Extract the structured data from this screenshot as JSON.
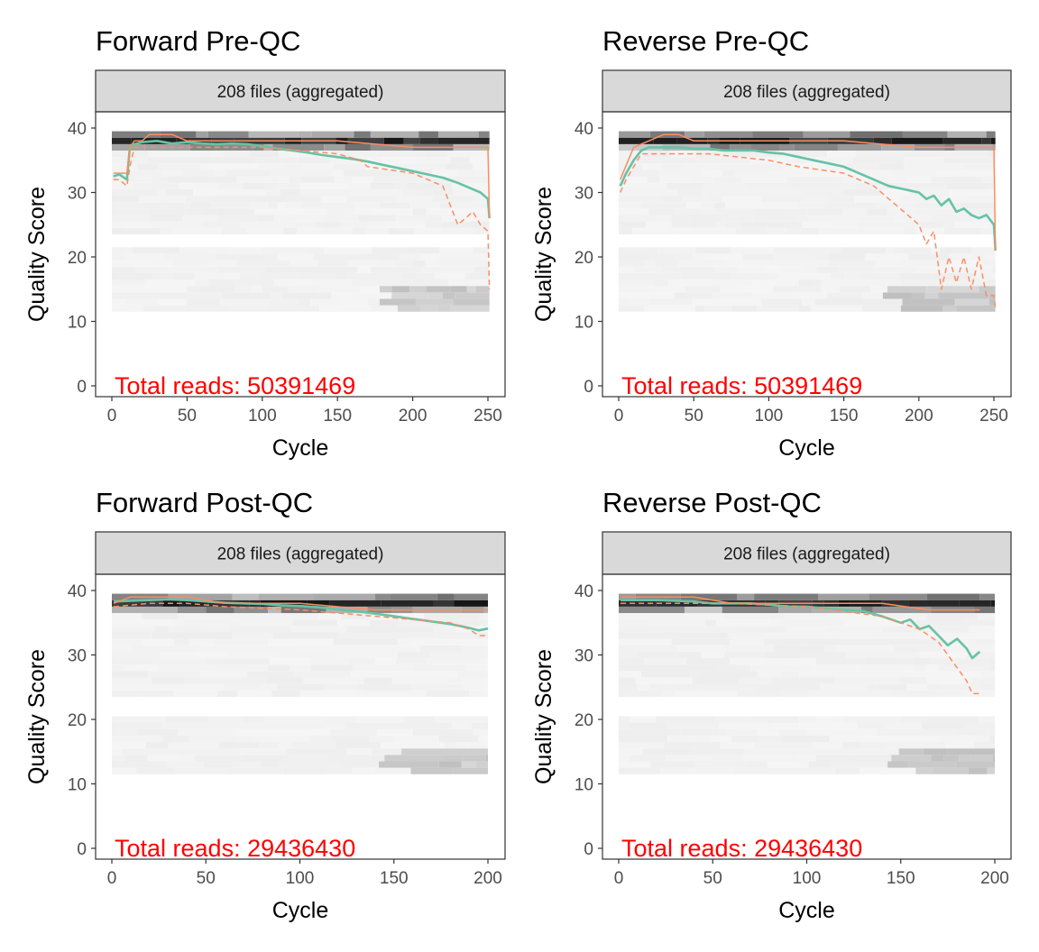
{
  "figure": {
    "panels": [
      {
        "title": "Forward Pre-QC",
        "strip": "208 files (aggregated)",
        "xlabel": "Cycle",
        "ylabel": "Quality Score",
        "annotation": "Total reads: 50391469"
      },
      {
        "title": "Reverse Pre-QC",
        "strip": "208 files (aggregated)",
        "xlabel": "Cycle",
        "ylabel": "Quality Score",
        "annotation": "Total reads: 50391469"
      },
      {
        "title": "Forward Post-QC",
        "strip": "208 files (aggregated)",
        "xlabel": "Cycle",
        "ylabel": "Quality Score",
        "annotation": "Total reads: 29436430"
      },
      {
        "title": "Reverse Post-QC",
        "strip": "208 files (aggregated)",
        "xlabel": "Cycle",
        "ylabel": "Quality Score",
        "annotation": "Total reads: 29436430"
      }
    ]
  },
  "colors": {
    "mean_line": "#66c2a5",
    "quantile_line": "#fc8d62",
    "median_line": "#fc8d62",
    "annotation_text": "#ff0000",
    "strip_fill": "#d9d9d9"
  },
  "chart_data": [
    {
      "type": "line",
      "title": "Forward Pre-QC",
      "xlabel": "Cycle",
      "ylabel": "Quality Score",
      "xlim": [
        0,
        251
      ],
      "ylim": [
        0,
        41
      ],
      "xticks": [
        0,
        50,
        100,
        150,
        200,
        250
      ],
      "yticks": [
        0,
        10,
        20,
        30,
        40
      ],
      "heatmap_bands": [
        [
          23.5,
          39.5
        ],
        [
          11.5,
          21
        ]
      ],
      "series": [
        {
          "role": "mean",
          "x": [
            1,
            5,
            10,
            12,
            15,
            20,
            30,
            40,
            50,
            60,
            70,
            80,
            90,
            100,
            110,
            120,
            130,
            140,
            150,
            160,
            170,
            180,
            190,
            200,
            210,
            220,
            230,
            240,
            245,
            250,
            251
          ],
          "y": [
            32.5,
            32.8,
            32,
            37,
            37.5,
            37.8,
            38,
            37.6,
            37.8,
            37.6,
            37.5,
            37.6,
            37.5,
            37.2,
            36.8,
            36.5,
            36.2,
            35.8,
            35.5,
            35.2,
            34.8,
            34.3,
            33.8,
            33.3,
            32.8,
            32.3,
            31.5,
            30.5,
            30,
            29,
            26
          ]
        },
        {
          "role": "median",
          "x": [
            1,
            5,
            10,
            12,
            15,
            20,
            25,
            30,
            40,
            50,
            100,
            150,
            200,
            240,
            250,
            251
          ],
          "y": [
            33,
            33,
            33,
            37,
            38,
            38,
            39,
            39,
            39,
            38,
            38,
            38,
            37,
            37,
            37,
            26
          ]
        },
        {
          "role": "quantile",
          "x": [
            1,
            5,
            10,
            12,
            15,
            20,
            30,
            60,
            100,
            150,
            165,
            170,
            200,
            220,
            225,
            230,
            235,
            240,
            245,
            250,
            251
          ],
          "y": [
            32,
            32,
            31,
            34,
            37,
            37,
            37,
            37,
            37,
            36,
            35,
            34,
            33,
            31,
            28,
            25,
            26,
            27,
            25,
            24,
            15
          ]
        }
      ]
    },
    {
      "type": "line",
      "title": "Reverse Pre-QC",
      "xlabel": "Cycle",
      "ylabel": "Quality Score",
      "xlim": [
        0,
        251
      ],
      "ylim": [
        0,
        41
      ],
      "xticks": [
        0,
        50,
        100,
        150,
        200,
        250
      ],
      "yticks": [
        0,
        10,
        20,
        30,
        40
      ],
      "heatmap_bands": [
        [
          23.5,
          39.5
        ],
        [
          11.5,
          21
        ]
      ],
      "series": [
        {
          "role": "mean",
          "x": [
            1,
            5,
            10,
            15,
            20,
            30,
            40,
            50,
            60,
            70,
            80,
            90,
            100,
            110,
            120,
            130,
            140,
            150,
            160,
            170,
            175,
            180,
            190,
            200,
            205,
            210,
            215,
            220,
            225,
            230,
            235,
            240,
            245,
            250,
            251
          ],
          "y": [
            31,
            33,
            35,
            36.5,
            37,
            37,
            37,
            36.8,
            36.8,
            36.5,
            36.5,
            36.5,
            36.2,
            36,
            35.5,
            35,
            34.5,
            34,
            33,
            32,
            31.5,
            31,
            30.5,
            30,
            29,
            29.5,
            28,
            29,
            27,
            27.5,
            26.5,
            26,
            26.5,
            25,
            21
          ]
        },
        {
          "role": "median",
          "x": [
            1,
            10,
            20,
            30,
            40,
            50,
            100,
            150,
            200,
            240,
            250,
            251
          ],
          "y": [
            32,
            37,
            38,
            39,
            39,
            38,
            38,
            38,
            37,
            37,
            37,
            21
          ]
        },
        {
          "role": "quantile",
          "x": [
            1,
            5,
            10,
            15,
            20,
            30,
            60,
            100,
            120,
            150,
            170,
            180,
            190,
            200,
            205,
            210,
            215,
            220,
            225,
            230,
            235,
            240,
            245,
            250,
            251
          ],
          "y": [
            30,
            32,
            34,
            36,
            36,
            36,
            36,
            35,
            34,
            33,
            31,
            29,
            27,
            25,
            22,
            24,
            15,
            20,
            16,
            20,
            15,
            20,
            14,
            14,
            12
          ]
        }
      ]
    },
    {
      "type": "line",
      "title": "Forward Post-QC",
      "xlabel": "Cycle",
      "ylabel": "Quality Score",
      "xlim": [
        0,
        200
      ],
      "ylim": [
        0,
        41
      ],
      "xticks": [
        0,
        50,
        100,
        150,
        200
      ],
      "yticks": [
        0,
        10,
        20,
        30,
        40
      ],
      "heatmap_bands": [
        [
          23.5,
          39.5
        ],
        [
          11.5,
          20
        ]
      ],
      "series": [
        {
          "role": "mean",
          "x": [
            1,
            10,
            20,
            30,
            40,
            50,
            60,
            70,
            80,
            90,
            100,
            110,
            120,
            130,
            140,
            150,
            160,
            170,
            180,
            185,
            190,
            195,
            200
          ],
          "y": [
            38.3,
            38.4,
            38.5,
            38.6,
            38.5,
            38.3,
            38.1,
            38,
            37.9,
            37.7,
            37.6,
            37.4,
            37.1,
            36.8,
            36.4,
            36,
            35.6,
            35.2,
            34.8,
            34.5,
            34.2,
            33.8,
            34.1
          ]
        },
        {
          "role": "median",
          "x": [
            1,
            10,
            20,
            40,
            60,
            100,
            140,
            180,
            200
          ],
          "y": [
            38,
            39,
            39,
            39,
            38,
            38,
            37,
            37,
            37
          ]
        },
        {
          "role": "quantile",
          "x": [
            1,
            20,
            40,
            60,
            100,
            140,
            160,
            180,
            190,
            195,
            200
          ],
          "y": [
            37.5,
            38,
            38,
            37.5,
            37,
            36,
            35.5,
            35,
            34,
            33,
            33
          ]
        }
      ]
    },
    {
      "type": "line",
      "title": "Reverse Post-QC",
      "xlabel": "Cycle",
      "ylabel": "Quality Score",
      "xlim": [
        0,
        200
      ],
      "ylim": [
        0,
        41
      ],
      "xticks": [
        0,
        50,
        100,
        150,
        200
      ],
      "yticks": [
        0,
        10,
        20,
        30,
        40
      ],
      "heatmap_bands": [
        [
          23.5,
          39.5
        ],
        [
          11.5,
          20
        ]
      ],
      "series": [
        {
          "role": "mean",
          "x": [
            1,
            10,
            20,
            30,
            40,
            50,
            60,
            70,
            80,
            90,
            100,
            110,
            120,
            130,
            140,
            145,
            150,
            155,
            160,
            165,
            170,
            175,
            180,
            185,
            188,
            192
          ],
          "y": [
            38.5,
            38.5,
            38.5,
            38.4,
            38.3,
            38,
            38,
            38,
            37.8,
            37.5,
            37.5,
            37.2,
            37,
            36.8,
            36,
            35.5,
            35,
            35.5,
            34,
            34.5,
            33,
            31.5,
            32.5,
            31,
            29.5,
            30.5
          ]
        },
        {
          "role": "median",
          "x": [
            1,
            20,
            40,
            60,
            100,
            140,
            165,
            170,
            180,
            192
          ],
          "y": [
            39,
            39,
            39,
            38,
            38,
            38,
            37,
            37,
            37,
            37
          ]
        },
        {
          "role": "quantile",
          "x": [
            1,
            20,
            40,
            60,
            100,
            140,
            150,
            160,
            170,
            175,
            180,
            185,
            188,
            192
          ],
          "y": [
            38,
            38,
            38,
            38,
            37.5,
            36,
            35,
            34,
            32,
            30,
            28,
            26,
            24,
            24
          ]
        }
      ]
    }
  ]
}
